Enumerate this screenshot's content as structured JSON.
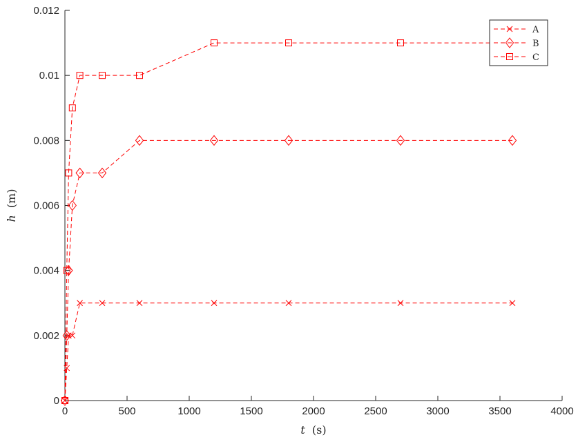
{
  "chart_data": {
    "type": "line",
    "title": "",
    "xlabel": {
      "symbol": "t",
      "unit": "(s)"
    },
    "ylabel": {
      "symbol": "h",
      "unit": "(m)"
    },
    "xlim": [
      0,
      4000
    ],
    "ylim": [
      0,
      0.012
    ],
    "x_ticks": [
      "0",
      "500",
      "1000",
      "1500",
      "2000",
      "2500",
      "3000",
      "3500",
      "4000"
    ],
    "y_ticks": [
      "0",
      "0.002",
      "0.004",
      "0.006",
      "0.008",
      "0.01",
      "0.012"
    ],
    "grid": false,
    "legend_position": "top-right",
    "line_color": "#ff0000",
    "line_style": "dashed",
    "x": [
      0,
      15,
      30,
      60,
      120,
      300,
      600,
      1200,
      1800,
      2700,
      3600
    ],
    "series": [
      {
        "name": "A",
        "marker": "x",
        "values": [
          0,
          0.001,
          0.002,
          0.002,
          0.003,
          0.003,
          0.003,
          0.003,
          0.003,
          0.003,
          0.003
        ]
      },
      {
        "name": "B",
        "marker": "diamond",
        "values": [
          0,
          0.002,
          0.004,
          0.006,
          0.007,
          0.007,
          0.008,
          0.008,
          0.008,
          0.008,
          0.008
        ]
      },
      {
        "name": "C",
        "marker": "square",
        "values": [
          0,
          0.004,
          0.007,
          0.009,
          0.01,
          0.01,
          0.01,
          0.011,
          0.011,
          0.011,
          0.011
        ]
      }
    ]
  }
}
